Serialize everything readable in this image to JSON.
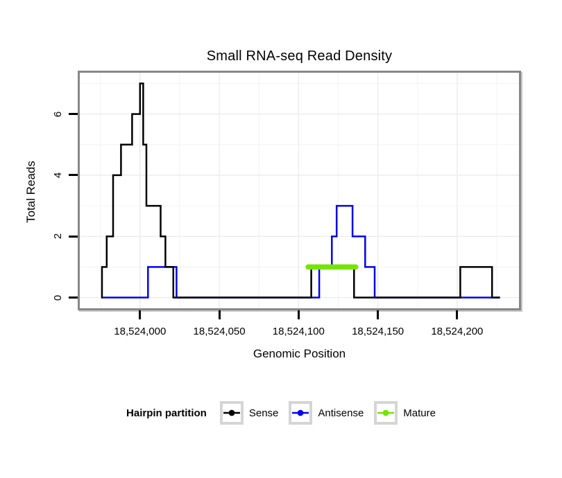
{
  "chart_data": {
    "type": "line-step",
    "title": "Small RNA-seq Read Density",
    "xlabel": "Genomic Position",
    "ylabel": "Total Reads",
    "x_domain": [
      18523962,
      18524239
    ],
    "y_domain": [
      -0.35,
      7.35
    ],
    "grid": true,
    "x_ticks": [
      {
        "value": 18524000,
        "label": "18,524,000"
      },
      {
        "value": 18524050,
        "label": "18,524,050"
      },
      {
        "value": 18524100,
        "label": "18,524,100"
      },
      {
        "value": 18524150,
        "label": "18,524,150"
      },
      {
        "value": 18524200,
        "label": "18,524,200"
      }
    ],
    "x_minor_ticks": [
      18523975,
      18524025,
      18524075,
      18524125,
      18524175,
      18524225
    ],
    "y_ticks": [
      {
        "value": 0,
        "label": "0"
      },
      {
        "value": 2,
        "label": "2"
      },
      {
        "value": 4,
        "label": "4"
      },
      {
        "value": 6,
        "label": "6"
      }
    ],
    "y_minor_ticks": [
      1,
      3,
      5,
      7
    ],
    "colors": {
      "grid_major": "#ECECEC",
      "grid_minor": "#F6F6F6",
      "panel_border": "#878787",
      "tick": "#000000"
    },
    "series": [
      {
        "name": "Antisense",
        "color": "#0202EE",
        "steps": [
          [
            18523975.5,
            18524005,
            0
          ],
          [
            18524005,
            18524023,
            1
          ],
          [
            18524023,
            18524113,
            0
          ],
          [
            18524113,
            18524121,
            1
          ],
          [
            18524121,
            18524124,
            2
          ],
          [
            18524124,
            18524134,
            3
          ],
          [
            18524134,
            18524142,
            2
          ],
          [
            18524142,
            18524148,
            1
          ],
          [
            18524148,
            18524227,
            0
          ]
        ]
      },
      {
        "name": "Sense",
        "color": "#000000",
        "steps": [
          [
            18523975.5,
            18523976,
            0
          ],
          [
            18523976,
            18523979,
            1
          ],
          [
            18523979,
            18523983,
            2
          ],
          [
            18523983,
            18523988,
            4
          ],
          [
            18523988,
            18523995,
            5
          ],
          [
            18523995,
            18524000,
            6
          ],
          [
            18524000,
            18524002,
            7
          ],
          [
            18524002,
            18524004,
            5
          ],
          [
            18524004,
            18524013,
            3
          ],
          [
            18524013,
            18524016,
            2
          ],
          [
            18524016,
            18524021,
            1
          ],
          [
            18524021,
            18524108,
            0
          ],
          [
            18524108,
            18524135,
            1
          ],
          [
            18524135,
            18524202,
            0
          ],
          [
            18524202,
            18524222,
            1
          ],
          [
            18524222,
            18524227,
            0
          ]
        ]
      }
    ],
    "mature_segment": {
      "name": "Mature",
      "color": "#72E500",
      "y": 1,
      "x_start": 18524106,
      "x_end": 18524136
    },
    "legend": {
      "title": "Hairpin partition",
      "items": [
        {
          "label": "Sense",
          "color": "#000000"
        },
        {
          "label": "Antisense",
          "color": "#0202EE"
        },
        {
          "label": "Mature",
          "color": "#72E500"
        }
      ]
    }
  }
}
